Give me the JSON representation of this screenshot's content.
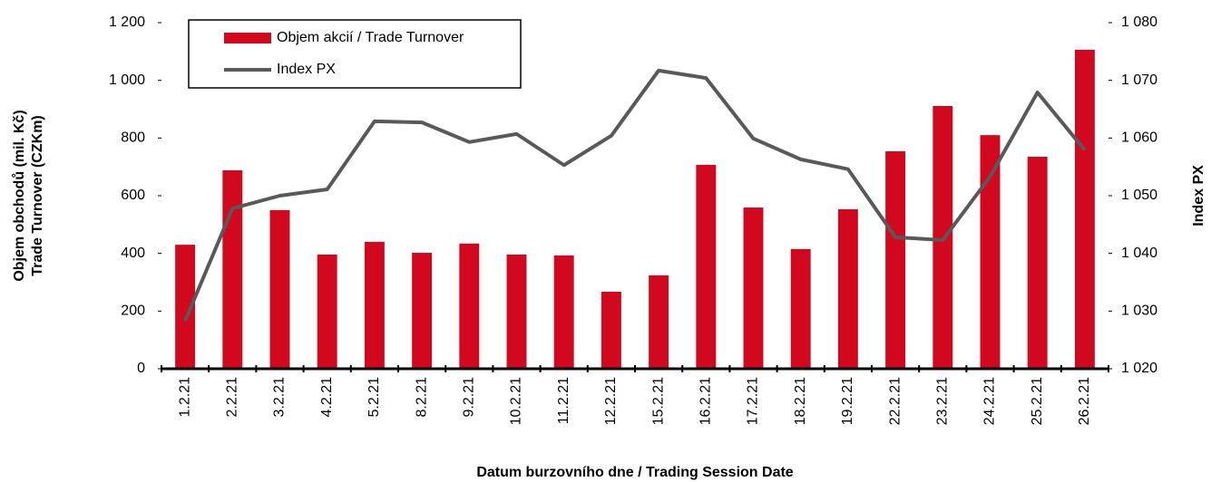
{
  "chart_data": {
    "type": "bar-line",
    "categories": [
      "1.2.21",
      "2.2.21",
      "3.2.21",
      "4.2.21",
      "5.2.21",
      "8.2.21",
      "9.2.21",
      "10.2.21",
      "11.2.21",
      "12.2.21",
      "15.2.21",
      "16.2.21",
      "17.2.21",
      "18.2.21",
      "19.2.21",
      "22.2.21",
      "23.2.21",
      "24.2.21",
      "25.2.21",
      "26.2.21"
    ],
    "series": [
      {
        "name": "Objem akcií / Trade Turnover",
        "type": "bar",
        "color": "#d2081e",
        "values": [
          430,
          688,
          550,
          396,
          440,
          402,
          434,
          396,
          393,
          267,
          324,
          707,
          559,
          415,
          553,
          754,
          911,
          810,
          735,
          1106
        ]
      },
      {
        "name": "Index PX",
        "type": "line",
        "color": "#595959",
        "axis": "y2",
        "values": [
          1028.3,
          1047.8,
          1050.0,
          1051.1,
          1062.9,
          1062.7,
          1059.3,
          1060.7,
          1055.3,
          1060.4,
          1071.7,
          1070.4,
          1059.9,
          1056.3,
          1054.6,
          1042.8,
          1042.3,
          1053.3,
          1067.9,
          1057.9
        ]
      }
    ],
    "ylim": [
      0,
      1200
    ],
    "yticks": [
      0,
      200,
      400,
      600,
      800,
      {
        "value": 1000,
        "label": "1 000"
      },
      {
        "value": 1200,
        "label": "1 200"
      }
    ],
    "y2lim": [
      1020,
      1080
    ],
    "y2ticks": [
      {
        "value": 1020,
        "label": "1 020"
      },
      {
        "value": 1030,
        "label": "1 030"
      },
      {
        "value": 1040,
        "label": "1 040"
      },
      {
        "value": 1050,
        "label": "1 050"
      },
      {
        "value": 1060,
        "label": "1 060"
      },
      {
        "value": 1070,
        "label": "1 070"
      },
      {
        "value": 1080,
        "label": "1 080"
      }
    ],
    "ylabel": [
      "Objem obchodů (mil. Kč)",
      "Trade Turnover (CZKm)"
    ],
    "y2label": "Index PX",
    "xlabel": "Datum burzovního dne / Trading Session Date",
    "grid": false,
    "legend": "top-left"
  }
}
